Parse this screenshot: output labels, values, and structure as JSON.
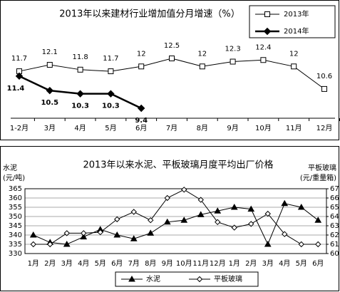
{
  "chart_data": [
    {
      "type": "line",
      "title": "2013年以来建材行业增加值分月增速（%）",
      "categories": [
        "1-2月",
        "3月",
        "4月",
        "5月",
        "6月",
        "7月",
        "8月",
        "9月",
        "10月",
        "11月",
        "12月"
      ],
      "series": [
        {
          "name": "2013年",
          "color": "#000000",
          "marker": "square",
          "values": [
            11.7,
            12.1,
            11.8,
            11.7,
            12,
            12.5,
            12,
            12.3,
            12.4,
            12,
            10.6
          ]
        },
        {
          "name": "2014年",
          "color": "#000000",
          "marker": "diamond",
          "values": [
            11.4,
            10.5,
            10.3,
            10.3,
            9.4,
            null,
            null,
            null,
            null,
            null,
            null
          ]
        }
      ],
      "legend": "upper right"
    },
    {
      "type": "line",
      "title": "2013年以来水泥、平板玻璃月度平均出厂价格",
      "ylabel": [
        "水泥",
        "(元/吨)"
      ],
      "y2label": [
        "平板玻璃",
        "(元/重量箱)"
      ],
      "categories": [
        "1月",
        "2月",
        "3月",
        "4月",
        "5月",
        "6月",
        "7月",
        "8月",
        "9月",
        "10月",
        "11月",
        "12月",
        "1月",
        "2月",
        "3月",
        "4月",
        "5月",
        "6月"
      ],
      "ylim": [
        330,
        365
      ],
      "yticks": [
        330,
        335,
        340,
        345,
        350,
        355,
        360,
        365
      ],
      "y2lim": [
        60,
        67
      ],
      "y2ticks": [
        60,
        61,
        62,
        63,
        64,
        65,
        66,
        67
      ],
      "grid": true,
      "series": [
        {
          "name": "水泥",
          "color": "#000000",
          "marker": "triangle",
          "values": [
            340,
            336,
            335,
            339,
            343,
            340,
            338,
            341,
            347,
            348,
            351,
            353,
            355,
            354,
            335,
            357,
            355,
            348
          ]
        },
        {
          "name": "平板玻璃",
          "color": "#000000",
          "marker": "diamond-open",
          "axis": "y2",
          "values": [
            61,
            61,
            62.2,
            62.2,
            62.3,
            63.7,
            64.5,
            63.6,
            66,
            66.9,
            65.8,
            63.4,
            62.8,
            63.2,
            64.3,
            62.1,
            61,
            61
          ]
        }
      ],
      "legend": "bottom"
    }
  ]
}
